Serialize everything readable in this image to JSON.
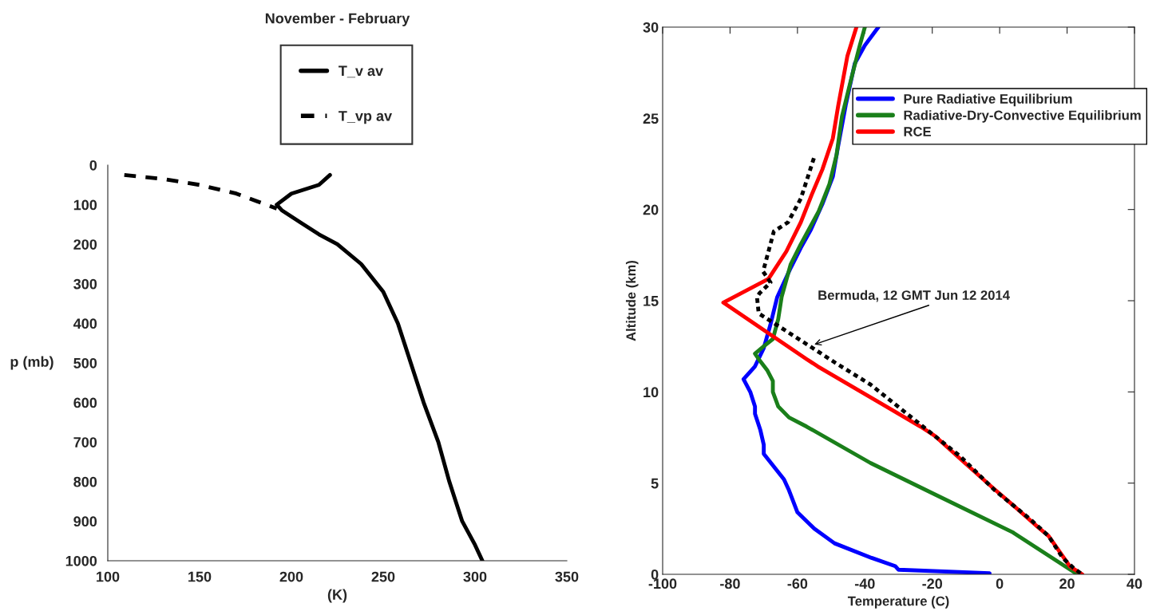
{
  "chart_data": [
    {
      "type": "line",
      "title": "November - February",
      "xlabel": "(K)",
      "ylabel": "p (mb)",
      "xlim": [
        100,
        350
      ],
      "xticks": [
        100,
        150,
        200,
        250,
        300,
        350
      ],
      "ylim": [
        1000,
        0
      ],
      "yticks": [
        0,
        100,
        200,
        300,
        400,
        500,
        600,
        700,
        800,
        900,
        1000
      ],
      "legend": "top",
      "grid": false,
      "series": [
        {
          "name": "T_v av",
          "color": "#000000",
          "line_style": "solid",
          "x": [
            221,
            215,
            200,
            192,
            195,
            205,
            215,
            225,
            238,
            250,
            258,
            265,
            272,
            280,
            286,
            293,
            300,
            304
          ],
          "values": [
            25,
            50,
            72,
            100,
            115,
            145,
            175,
            200,
            250,
            320,
            400,
            500,
            600,
            700,
            800,
            900,
            960,
            1000
          ]
        },
        {
          "name": "T_vp av",
          "color": "#000000",
          "line_style": "dashed",
          "x": [
            109,
            130,
            150,
            170,
            192
          ],
          "values": [
            25,
            35,
            50,
            72,
            110
          ]
        }
      ]
    },
    {
      "type": "line",
      "xlabel": "Temperature (C)",
      "ylabel": "Altitude (km)",
      "xlim": [
        -100,
        40
      ],
      "xticks": [
        -100,
        -80,
        -60,
        -40,
        -20,
        0,
        20,
        40
      ],
      "ylim": [
        0,
        30
      ],
      "yticks": [
        0,
        5,
        10,
        15,
        20,
        25,
        30
      ],
      "legend": "top right",
      "grid": false,
      "annotations": [
        {
          "text": "Bermuda, 12 GMT Jun 12 2014",
          "x": -55,
          "y": 12.6
        }
      ],
      "series": [
        {
          "name": "Pure Radiative Equilibrium",
          "color": "#0000ff",
          "line_style": "solid",
          "x": [
            -3,
            -30,
            -31,
            -38,
            -49,
            -55,
            -60,
            -62.5,
            -64,
            -70,
            -70,
            -71,
            -72.6,
            -72.6,
            -74,
            -76,
            -72.6,
            -70,
            -68,
            -66,
            -62,
            -59,
            -56,
            -52.6,
            -49.5,
            -48,
            -45.7,
            -43,
            -40,
            -36
          ],
          "values": [
            0.06,
            0.25,
            0.45,
            0.9,
            1.7,
            2.5,
            3.4,
            4.6,
            5.2,
            6.6,
            7.1,
            7.9,
            8.8,
            9.2,
            10,
            10.7,
            11.4,
            12.4,
            13.7,
            15.2,
            16.8,
            17.9,
            18.9,
            20.3,
            21.8,
            23.4,
            25.7,
            28,
            29,
            30
          ]
        },
        {
          "name": "Radiative-Dry-Convective Equilibrium",
          "color": "#1a7f1a",
          "line_style": "solid",
          "x": [
            23,
            21.8,
            3.9,
            -17.2,
            -38.3,
            -57.3,
            -62.5,
            -65.7,
            -67.3,
            -67.3,
            -69,
            -71.5,
            -72.6,
            -70,
            -67.3,
            -65.7,
            -64.7,
            -62,
            -59,
            -53.7,
            -50.5,
            -48.4,
            -46.8,
            -44,
            -41.5,
            -40
          ],
          "values": [
            0,
            0.15,
            2.3,
            4.2,
            6.1,
            8.1,
            8.6,
            9.2,
            10,
            10.6,
            11.2,
            11.8,
            12.1,
            12.5,
            12.9,
            14,
            15.2,
            17,
            18.1,
            19.9,
            21.4,
            23,
            25.1,
            27.2,
            29,
            30
          ]
        },
        {
          "name": "RCE",
          "color": "#ff0000",
          "line_style": "solid",
          "x": [
            24.5,
            20.8,
            14.5,
            11.3,
            3.9,
            -2.4,
            -10.9,
            -19.3,
            -23.5,
            -54,
            -57.3,
            -82,
            -68.6,
            -63.3,
            -59,
            -55.8,
            -52.6,
            -49.5,
            -47.9,
            -45.2,
            -42.5
          ],
          "values": [
            0,
            0.44,
            2.1,
            2.6,
            3.8,
            4.8,
            6.2,
            7.6,
            8.1,
            11.4,
            11.8,
            14.9,
            16.2,
            17.7,
            19.3,
            20.8,
            22.2,
            23.9,
            25.7,
            28.4,
            30
          ]
        },
        {
          "color": "#000000",
          "line_style": "dotted",
          "x": [
            24,
            21.9,
            18.7,
            14.5,
            9.2,
            -1.4,
            -11.9,
            -21.4,
            -38.3,
            -48.8,
            -54.6,
            -64.7,
            -71.5,
            -72,
            -71.3,
            -68,
            -70.2,
            -67,
            -62.8,
            -59,
            -54.8
          ],
          "values": [
            0.06,
            0.35,
            0.9,
            2.1,
            3.0,
            4.6,
            6.5,
            7.9,
            10.4,
            11.6,
            12.3,
            13.5,
            14.3,
            15.2,
            15.4,
            16,
            16.6,
            18.8,
            19.3,
            20.6,
            23
          ]
        }
      ]
    }
  ]
}
